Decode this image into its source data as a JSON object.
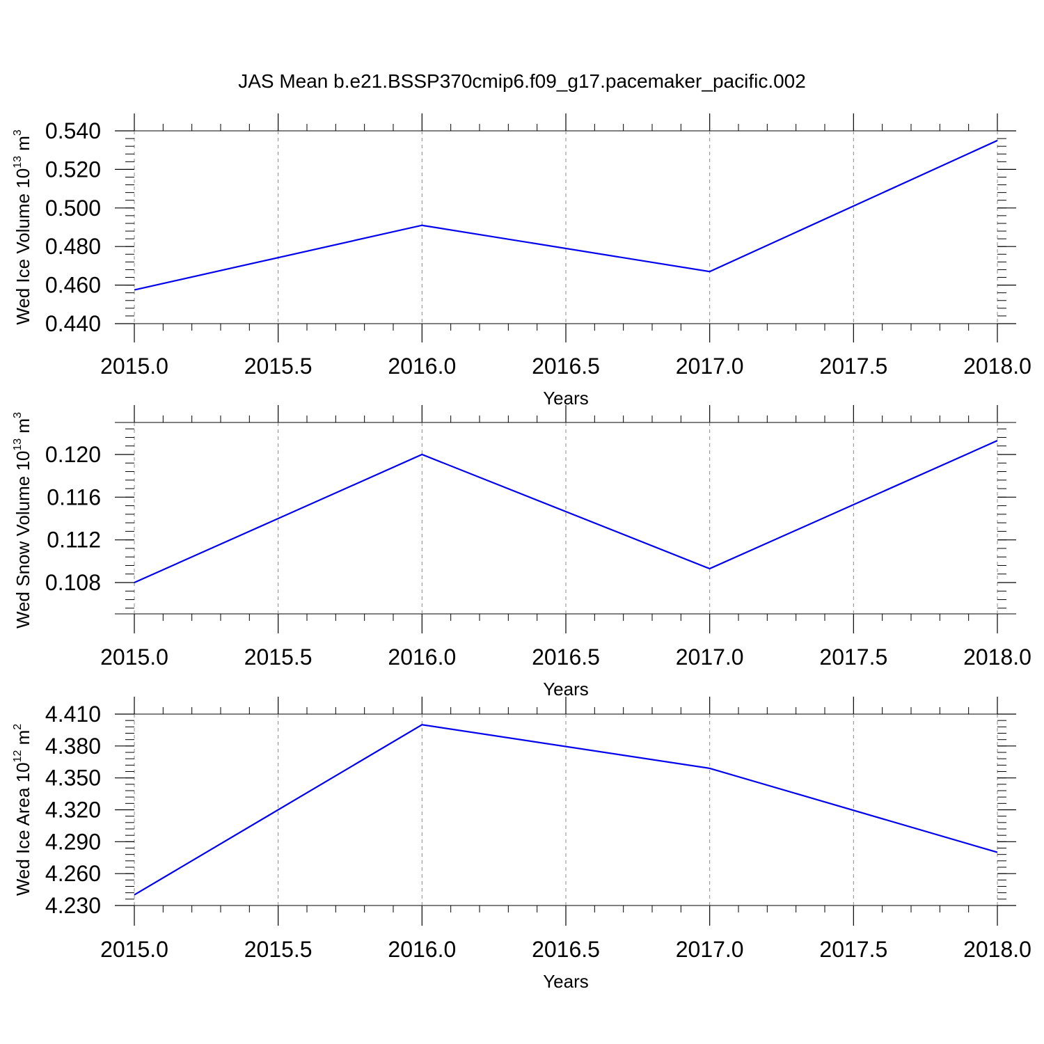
{
  "title": "JAS Mean b.e21.BSSP370cmip6.f09_g17.pacemaker_pacific.002",
  "line_color": "#0000ee",
  "chart_data": [
    {
      "type": "line",
      "ylabel": {
        "text": "Wed Ice Volume 10",
        "exp": "13",
        "unit": " m",
        "unit_exp": "3"
      },
      "xlabel": "Years",
      "x": [
        2015,
        2016,
        2017,
        2018
      ],
      "y": [
        0.4575,
        0.491,
        0.467,
        0.535
      ],
      "xlim": [
        2015,
        2018
      ],
      "ylim": [
        0.44,
        0.549
      ],
      "xticks": [
        "2015.0",
        "2015.5",
        "2016.0",
        "2016.5",
        "2017.0",
        "2017.5",
        "2018.0"
      ],
      "yticks": [
        "0.440",
        "0.460",
        "0.480",
        "0.500",
        "0.520",
        "0.540"
      ]
    },
    {
      "type": "line",
      "ylabel": {
        "text": "Wed Snow Volume 10",
        "exp": "13",
        "unit": " m",
        "unit_exp": "3"
      },
      "xlabel": "Years",
      "x": [
        2015,
        2016,
        2017,
        2018
      ],
      "y": [
        0.108,
        0.12,
        0.1093,
        0.1213
      ],
      "xlim": [
        2015,
        2018
      ],
      "ylim": [
        0.105,
        0.123
      ],
      "xticks": [
        "2015.0",
        "2015.5",
        "2016.0",
        "2016.5",
        "2017.0",
        "2017.5",
        "2018.0"
      ],
      "yticks": [
        "0.108",
        "0.112",
        "0.116",
        "0.120"
      ]
    },
    {
      "type": "line",
      "ylabel": {
        "text": "Wed Ice Area 10",
        "exp": "12",
        "unit": " m",
        "unit_exp": "2"
      },
      "xlabel": "Years",
      "x": [
        2015,
        2016,
        2017,
        2018
      ],
      "y": [
        4.24,
        4.4,
        4.359,
        4.28
      ],
      "xlim": [
        2015,
        2018
      ],
      "ylim": [
        4.23,
        4.41
      ],
      "xticks": [
        "2015.0",
        "2015.5",
        "2016.0",
        "2016.5",
        "2017.0",
        "2017.5",
        "2018.0"
      ],
      "yticks": [
        "4.230",
        "4.260",
        "4.290",
        "4.320",
        "4.350",
        "4.380",
        "4.410"
      ]
    }
  ]
}
